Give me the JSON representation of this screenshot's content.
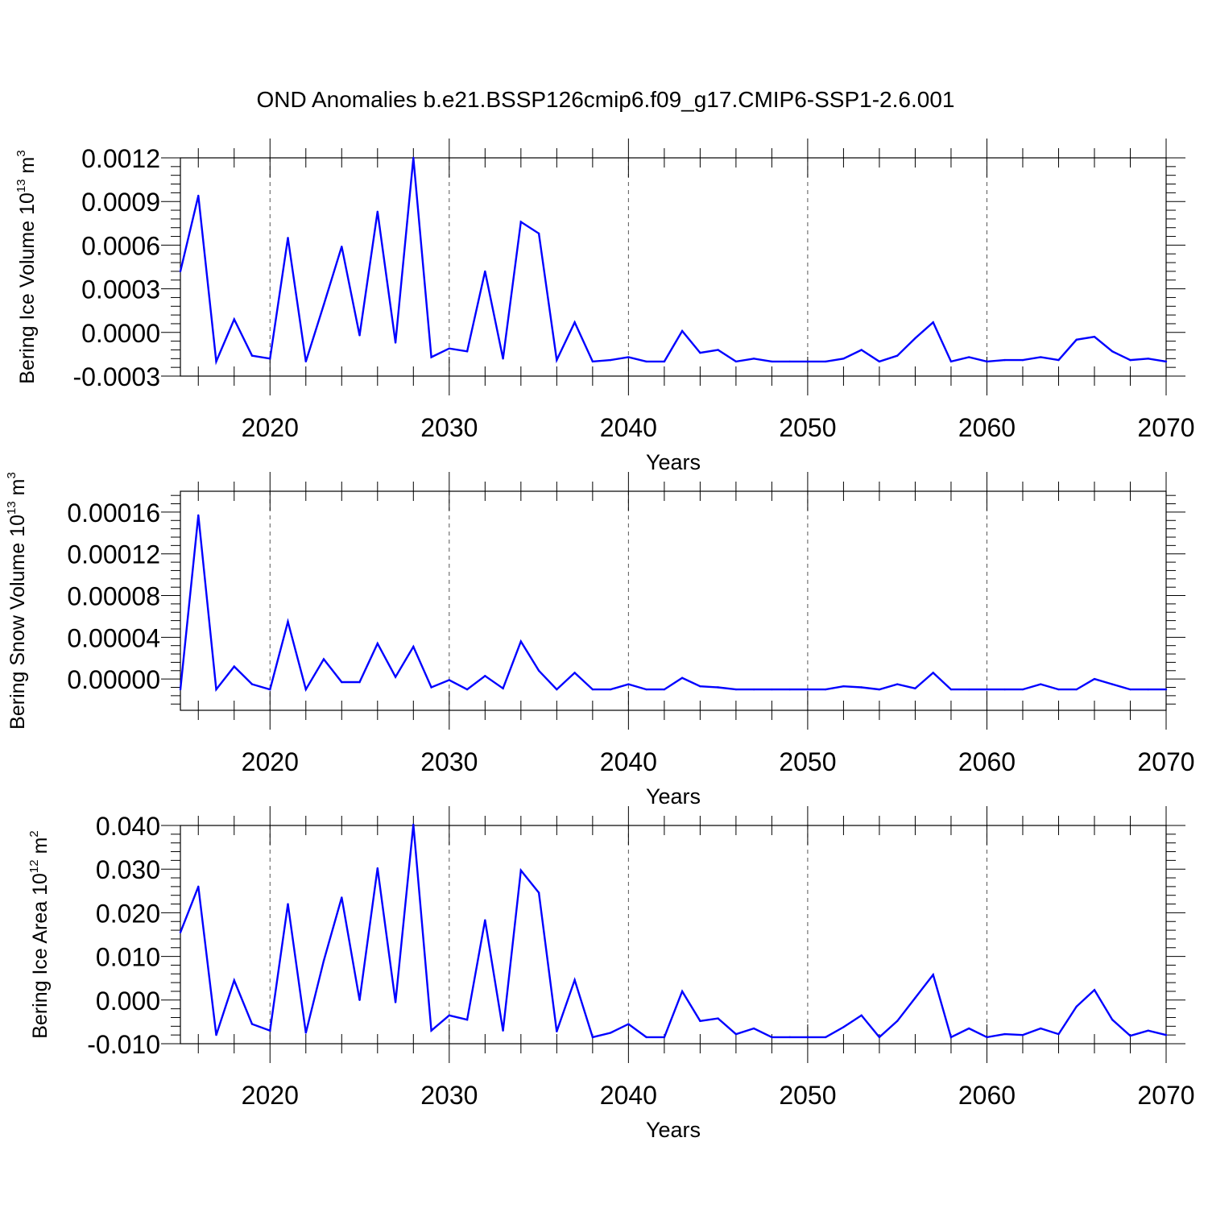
{
  "title": "OND Anomalies b.e21.BSSP126cmip6.f09_g17.CMIP6-SSP1-2.6.001",
  "colors": {
    "series": "#0000ff",
    "axes": "#000000",
    "grid": "#555555"
  },
  "chart_data": [
    {
      "type": "line",
      "xlabel": "Years",
      "ylabel_main": "Bering Ice Volume 10",
      "ylabel_exp": "13",
      "ylabel_unit": " m",
      "ylabel_unit_exp": "3",
      "xlim": [
        2015,
        2070
      ],
      "ylim": [
        -0.0003,
        0.0012
      ],
      "xticks": [
        2020,
        2030,
        2040,
        2050,
        2060,
        2070
      ],
      "xtick_labels": [
        "2020",
        "2030",
        "2040",
        "2050",
        "2060",
        "2070"
      ],
      "yticks": [
        -0.0003,
        0,
        0.0003,
        0.0006,
        0.0009,
        0.0012
      ],
      "ytick_labels": [
        "-0.0003",
        "0.0000",
        "0.0003",
        "0.0006",
        "0.0009",
        "0.0012"
      ],
      "grid": "dashed vertical at major x ticks",
      "series": [
        {
          "x": [
            2015,
            2016,
            2017,
            2018,
            2019,
            2020,
            2021,
            2022,
            2023,
            2024,
            2025,
            2026,
            2027,
            2028,
            2029,
            2030,
            2031,
            2032,
            2033,
            2034,
            2035,
            2036,
            2037,
            2038,
            2039,
            2040,
            2041,
            2042,
            2043,
            2044,
            2045,
            2046,
            2047,
            2048,
            2049,
            2050,
            2051,
            2052,
            2053,
            2054,
            2055,
            2056,
            2057,
            2058,
            2059,
            2060,
            2061,
            2062,
            2063,
            2064,
            2065,
            2066,
            2067,
            2068,
            2069,
            2070
          ],
          "values": [
            0.00042,
            0.00094,
            -0.0002,
            9e-05,
            -0.00016,
            -0.00018,
            0.00065,
            -0.0002,
            0.00019,
            0.00059,
            -2e-05,
            0.00083,
            -7e-05,
            0.0012,
            -0.00017,
            -0.00011,
            -0.00013,
            0.00042,
            -0.00018,
            0.00076,
            0.00068,
            -0.00019,
            7e-05,
            -0.0002,
            -0.00019,
            -0.00017,
            -0.0002,
            -0.0002,
            1e-05,
            -0.00014,
            -0.00012,
            -0.0002,
            -0.00018,
            -0.0002,
            -0.0002,
            -0.0002,
            -0.0002,
            -0.00018,
            -0.00012,
            -0.0002,
            -0.00016,
            -4e-05,
            7e-05,
            -0.0002,
            -0.00017,
            -0.0002,
            -0.00019,
            -0.00019,
            -0.00017,
            -0.00019,
            -5e-05,
            -3e-05,
            -0.00013,
            -0.00019,
            -0.00018,
            -0.0002
          ]
        }
      ]
    },
    {
      "type": "line",
      "xlabel": "Years",
      "ylabel_main": "Bering Snow Volume 10",
      "ylabel_exp": "13",
      "ylabel_unit": " m",
      "ylabel_unit_exp": "3",
      "xlim": [
        2015,
        2070
      ],
      "ylim": [
        -3e-05,
        0.00018
      ],
      "xticks": [
        2020,
        2030,
        2040,
        2050,
        2060,
        2070
      ],
      "xtick_labels": [
        "2020",
        "2030",
        "2040",
        "2050",
        "2060",
        "2070"
      ],
      "yticks": [
        0,
        4e-05,
        8e-05,
        0.00012,
        0.00016
      ],
      "ytick_labels": [
        "0.00000",
        "0.00004",
        "0.00008",
        "0.00012",
        "0.00016"
      ],
      "grid": "dashed vertical at major x ticks",
      "series": [
        {
          "x": [
            2015,
            2016,
            2017,
            2018,
            2019,
            2020,
            2021,
            2022,
            2023,
            2024,
            2025,
            2026,
            2027,
            2028,
            2029,
            2030,
            2031,
            2032,
            2033,
            2034,
            2035,
            2036,
            2037,
            2038,
            2039,
            2040,
            2041,
            2042,
            2043,
            2044,
            2045,
            2046,
            2047,
            2048,
            2049,
            2050,
            2051,
            2052,
            2053,
            2054,
            2055,
            2056,
            2057,
            2058,
            2059,
            2060,
            2061,
            2062,
            2063,
            2064,
            2065,
            2066,
            2067,
            2068,
            2069,
            2070
          ],
          "values": [
            -1e-05,
            0.000157,
            -1e-05,
            1.2e-05,
            -5e-06,
            -1e-05,
            5.5e-05,
            -1e-05,
            1.9e-05,
            -3e-06,
            -3e-06,
            3.4e-05,
            2e-06,
            3.1e-05,
            -8e-06,
            -1e-06,
            -1e-05,
            3e-06,
            -9e-06,
            3.6e-05,
            8e-06,
            -1e-05,
            6e-06,
            -1e-05,
            -1e-05,
            -5e-06,
            -1e-05,
            -1e-05,
            1e-06,
            -7e-06,
            -8e-06,
            -1e-05,
            -1e-05,
            -1e-05,
            -1e-05,
            -1e-05,
            -1e-05,
            -7e-06,
            -8e-06,
            -1e-05,
            -5e-06,
            -9e-06,
            6e-06,
            -1e-05,
            -1e-05,
            -1e-05,
            -1e-05,
            -1e-05,
            -5e-06,
            -1e-05,
            -1e-05,
            0.0,
            -5e-06,
            -1e-05,
            -1e-05,
            -1e-05
          ]
        }
      ]
    },
    {
      "type": "line",
      "xlabel": "Years",
      "ylabel_main": "Bering Ice Area 10",
      "ylabel_exp": "12",
      "ylabel_unit": " m",
      "ylabel_unit_exp": "2",
      "xlim": [
        2015,
        2070
      ],
      "ylim": [
        -0.01,
        0.04
      ],
      "xticks": [
        2020,
        2030,
        2040,
        2050,
        2060,
        2070
      ],
      "xtick_labels": [
        "2020",
        "2030",
        "2040",
        "2050",
        "2060",
        "2070"
      ],
      "yticks": [
        -0.01,
        0,
        0.01,
        0.02,
        0.03,
        0.04
      ],
      "ytick_labels": [
        "-0.010",
        "0.000",
        "0.010",
        "0.020",
        "0.030",
        "0.040"
      ],
      "grid": "dashed vertical at major x ticks",
      "series": [
        {
          "x": [
            2015,
            2016,
            2017,
            2018,
            2019,
            2020,
            2021,
            2022,
            2023,
            2024,
            2025,
            2026,
            2027,
            2028,
            2029,
            2030,
            2031,
            2032,
            2033,
            2034,
            2035,
            2036,
            2037,
            2038,
            2039,
            2040,
            2041,
            2042,
            2043,
            2044,
            2045,
            2046,
            2047,
            2048,
            2049,
            2050,
            2051,
            2052,
            2053,
            2054,
            2055,
            2056,
            2057,
            2058,
            2059,
            2060,
            2061,
            2062,
            2063,
            2064,
            2065,
            2066,
            2067,
            2068,
            2069,
            2070
          ],
          "values": [
            0.0155,
            0.026,
            -0.008,
            0.0045,
            -0.0055,
            -0.007,
            0.022,
            -0.0075,
            0.009,
            0.0235,
            0.0,
            0.0302,
            -0.0005,
            0.0402,
            -0.007,
            -0.0035,
            -0.0045,
            0.0183,
            -0.007,
            0.0297,
            0.0246,
            -0.0072,
            0.0046,
            -0.0085,
            -0.0075,
            -0.0055,
            -0.0085,
            -0.0085,
            0.002,
            -0.0048,
            -0.0042,
            -0.0078,
            -0.0065,
            -0.0085,
            -0.0085,
            -0.0085,
            -0.0085,
            -0.0062,
            -0.0035,
            -0.0085,
            -0.0048,
            0.0005,
            0.0058,
            -0.0085,
            -0.0065,
            -0.0085,
            -0.0078,
            -0.008,
            -0.0065,
            -0.0078,
            -0.0015,
            0.0023,
            -0.0045,
            -0.0082,
            -0.007,
            -0.008
          ]
        }
      ]
    }
  ]
}
